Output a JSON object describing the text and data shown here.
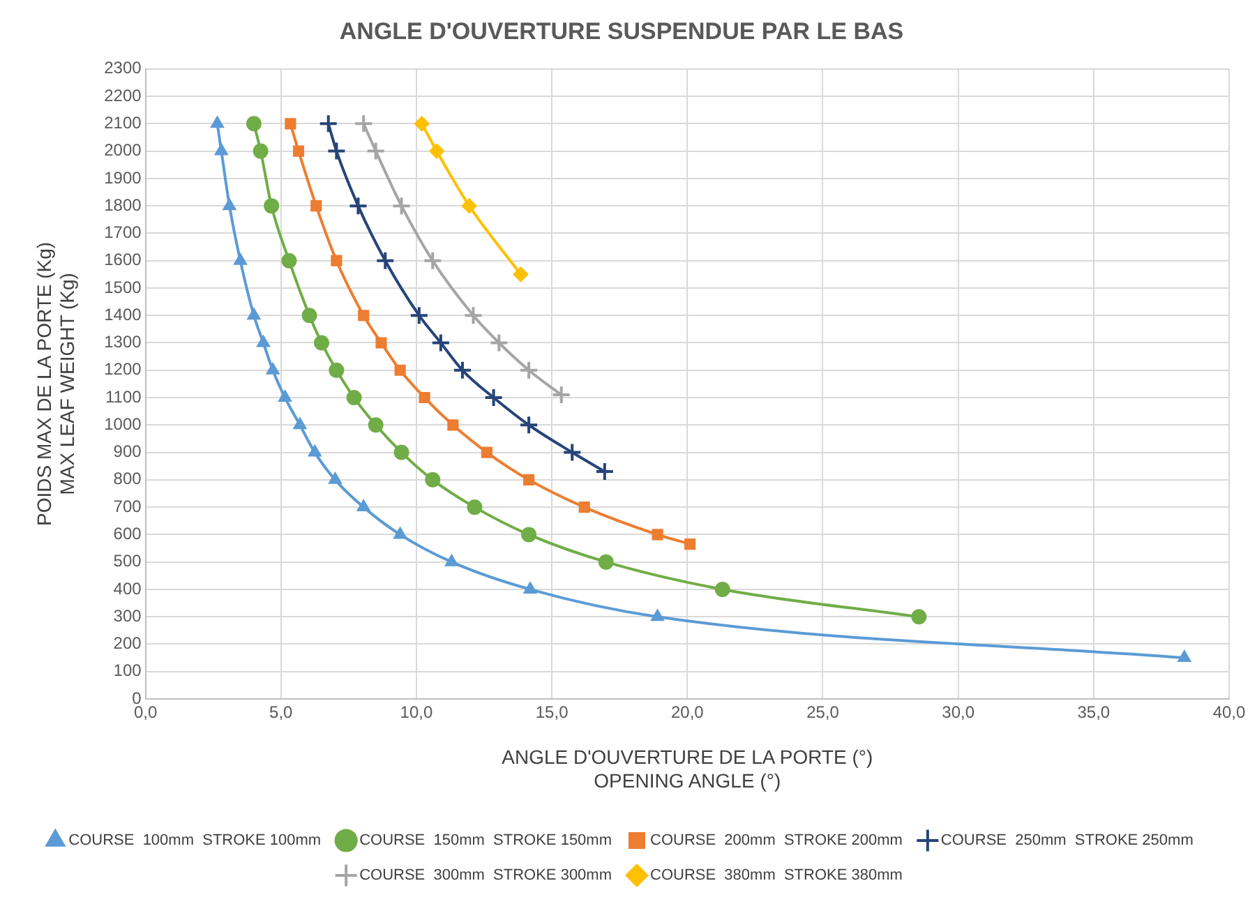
{
  "chart_data": {
    "type": "line",
    "title": "ANGLE D'OUVERTURE SUSPENDUE PAR LE BAS",
    "xlabel": "ANGLE D'OUVERTURE DE LA PORTE (°)\nOPENING ANGLE (°)",
    "ylabel": "POIDS MAX DE LA PORTE (Kg)\nMAX LEAF WEIGHT (Kg)",
    "xlim": [
      0,
      40
    ],
    "xticks": [
      {
        "value": 0,
        "label": "0,0"
      },
      {
        "value": 5,
        "label": "5,0"
      },
      {
        "value": 10,
        "label": "10,0"
      },
      {
        "value": 15,
        "label": "15,0"
      },
      {
        "value": 20,
        "label": "20,0"
      },
      {
        "value": 25,
        "label": "25,0"
      },
      {
        "value": 30,
        "label": "30,0"
      },
      {
        "value": 35,
        "label": "35,0"
      },
      {
        "value": 40,
        "label": "40,0"
      }
    ],
    "ylim": [
      0,
      2300
    ],
    "yticks": [
      0,
      100,
      200,
      300,
      400,
      500,
      600,
      700,
      800,
      900,
      1000,
      1100,
      1200,
      1300,
      1400,
      1500,
      1600,
      1700,
      1800,
      1900,
      2000,
      2100,
      2200,
      2300
    ],
    "grid": true,
    "legend": "bottom",
    "line_style": "solid",
    "series": [
      {
        "name": "COURSE  100mm  STROKE 100mm",
        "color": "#5b9bd5",
        "marker": "triangle",
        "x": [
          2.65,
          2.8,
          3.1,
          3.5,
          4.0,
          4.35,
          4.7,
          5.15,
          5.7,
          6.25,
          7.0,
          8.05,
          9.4,
          11.3,
          14.2,
          18.9,
          38.35
        ],
        "values": [
          2100,
          2000,
          1800,
          1600,
          1400,
          1300,
          1200,
          1100,
          1000,
          900,
          800,
          700,
          600,
          500,
          400,
          300,
          150
        ]
      },
      {
        "name": "COURSE  150mm  STROKE 150mm",
        "color": "#70ad47",
        "marker": "circle",
        "x": [
          4.0,
          4.25,
          4.65,
          5.3,
          6.05,
          6.5,
          7.05,
          7.7,
          8.5,
          9.45,
          10.6,
          12.15,
          14.15,
          17.0,
          21.3,
          28.55
        ],
        "values": [
          2100,
          2000,
          1800,
          1600,
          1400,
          1300,
          1200,
          1100,
          1000,
          900,
          800,
          700,
          600,
          500,
          400,
          300
        ]
      },
      {
        "name": "COURSE  200mm  STROKE 200mm",
        "color": "#ed7d31",
        "marker": "square",
        "x": [
          5.35,
          5.65,
          6.3,
          7.05,
          8.05,
          8.7,
          9.4,
          10.3,
          11.35,
          12.6,
          14.15,
          16.2,
          18.9,
          20.1
        ],
        "values": [
          2100,
          2000,
          1800,
          1600,
          1400,
          1300,
          1200,
          1100,
          1000,
          900,
          800,
          700,
          600,
          565
        ]
      },
      {
        "name": "COURSE  250mm  STROKE 250mm",
        "color": "#264478",
        "marker": "cross",
        "x": [
          6.75,
          7.05,
          7.85,
          8.85,
          10.1,
          10.9,
          11.7,
          12.85,
          14.15,
          15.75,
          16.95
        ],
        "values": [
          2100,
          2000,
          1800,
          1600,
          1400,
          1300,
          1200,
          1100,
          1000,
          900,
          830
        ]
      },
      {
        "name": "COURSE  300mm  STROKE 300mm",
        "color": "#a5a5a5",
        "marker": "cross",
        "x": [
          8.05,
          8.5,
          9.45,
          10.6,
          12.1,
          13.05,
          14.15,
          15.35
        ],
        "values": [
          2100,
          2000,
          1800,
          1600,
          1400,
          1300,
          1200,
          1110
        ]
      },
      {
        "name": "COURSE  380mm  STROKE 380mm",
        "color": "#ffc000",
        "marker": "diamond",
        "x": [
          10.2,
          10.75,
          11.95,
          13.85
        ],
        "values": [
          2100,
          2000,
          1800,
          1550
        ]
      }
    ]
  }
}
